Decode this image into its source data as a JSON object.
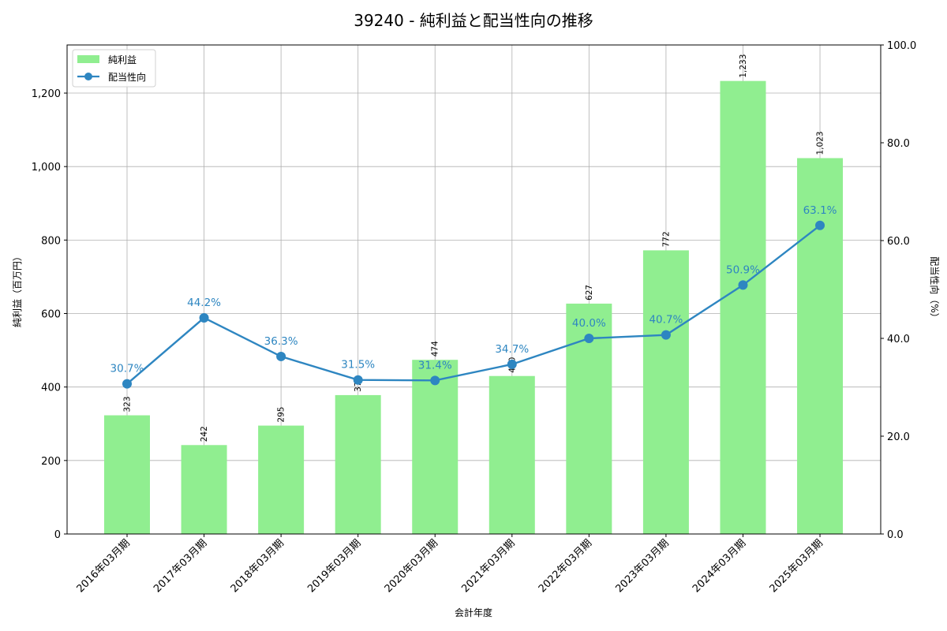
{
  "title": "39240 - 純利益と配当性向の推移",
  "chart_data": {
    "type": "bar+line",
    "title": "39240 - 純利益と配当性向の推移",
    "xlabel": "会計年度",
    "ylabel_left": "純利益（百万円）",
    "ylabel_right": "配当性向（%）",
    "categories": [
      "2016年03月期",
      "2017年03月期",
      "2018年03月期",
      "2019年03月期",
      "2020年03月期",
      "2021年03月期",
      "2022年03月期",
      "2023年03月期",
      "2024年03月期",
      "2025年03月期"
    ],
    "series": [
      {
        "name": "純利益",
        "type": "bar",
        "axis": "left",
        "color": "#90ee90",
        "values": [
          323,
          242,
          295,
          378,
          474,
          430,
          627,
          772,
          1233,
          1023
        ],
        "labels": [
          "323",
          "242",
          "295",
          "378",
          "474",
          "430",
          "627",
          "772",
          "1,233",
          "1,023"
        ]
      },
      {
        "name": "配当性向",
        "type": "line",
        "axis": "right",
        "color": "#2e86c1",
        "values": [
          30.7,
          44.2,
          36.3,
          31.5,
          31.4,
          34.7,
          40.0,
          40.7,
          50.9,
          63.1
        ],
        "labels": [
          "30.7%",
          "44.2%",
          "36.3%",
          "31.5%",
          "31.4%",
          "34.7%",
          "40.0%",
          "40.7%",
          "50.9%",
          "63.1%"
        ]
      }
    ],
    "ylim_left": [
      0,
      1331
    ],
    "ylim_right": [
      0,
      100
    ],
    "yticks_left": [
      0,
      200,
      400,
      600,
      800,
      1000,
      1200
    ],
    "yticks_left_labels": [
      "0",
      "200",
      "400",
      "600",
      "800",
      "1,000",
      "1,200"
    ],
    "yticks_right": [
      0,
      20,
      40,
      60,
      80,
      100
    ],
    "yticks_right_labels": [
      "0.0",
      "20.0",
      "40.0",
      "60.0",
      "80.0",
      "100.0"
    ],
    "grid": true,
    "legend_position": "upper left"
  },
  "legend": {
    "items": [
      {
        "label": "純利益",
        "kind": "bar-swatch"
      },
      {
        "label": "配当性向",
        "kind": "line-marker"
      }
    ]
  }
}
